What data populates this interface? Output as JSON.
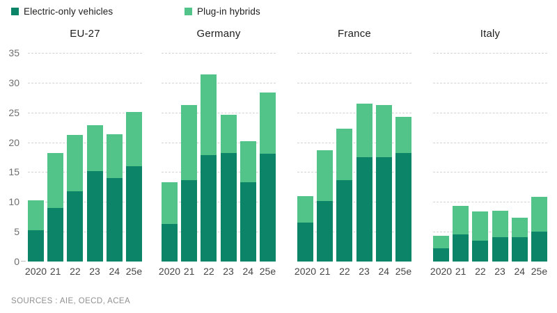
{
  "legend": [
    {
      "label": "Electric-only vehicles",
      "color": "#0C8468"
    },
    {
      "label": "Plug-in hybrids",
      "color": "#52C489"
    }
  ],
  "source_note": "SOURCES : AIE, OECD, ACEA",
  "chart_data": {
    "type": "bar",
    "stacked": true,
    "grid": "horizontal-dashed",
    "legend_position": "top-left",
    "categories": [
      "2020",
      "21",
      "22",
      "23",
      "24",
      "25e"
    ],
    "ylim": [
      0,
      35
    ],
    "yticks": [
      0,
      5,
      10,
      15,
      20,
      25,
      30,
      35
    ],
    "colors": {
      "electric": "#0C8468",
      "hybrid": "#52C489"
    },
    "panels": [
      {
        "title": "EU-27",
        "series": [
          {
            "name": "Electric-only vehicles",
            "values": [
              5.2,
              9.0,
              11.8,
              15.2,
              14.0,
              16.0
            ]
          },
          {
            "name": "Plug-in hybrids",
            "values": [
              5.1,
              9.2,
              9.5,
              7.7,
              7.3,
              9.1
            ]
          }
        ]
      },
      {
        "title": "Germany",
        "series": [
          {
            "name": "Electric-only vehicles",
            "values": [
              6.3,
              13.6,
              17.8,
              18.2,
              13.3,
              18.1
            ]
          },
          {
            "name": "Plug-in hybrids",
            "values": [
              7.0,
              12.7,
              13.6,
              6.4,
              6.9,
              10.3
            ]
          }
        ]
      },
      {
        "title": "France",
        "series": [
          {
            "name": "Electric-only vehicles",
            "values": [
              6.5,
              10.1,
              13.6,
              17.5,
              17.5,
              18.2
            ]
          },
          {
            "name": "Plug-in hybrids",
            "values": [
              4.5,
              8.6,
              8.7,
              9.0,
              8.7,
              6.1
            ]
          }
        ]
      },
      {
        "title": "Italy",
        "series": [
          {
            "name": "Electric-only vehicles",
            "values": [
              2.2,
              4.5,
              3.5,
              4.1,
              4.1,
              5.0
            ]
          },
          {
            "name": "Plug-in hybrids",
            "values": [
              2.1,
              4.8,
              4.9,
              4.4,
              3.3,
              5.9
            ]
          }
        ]
      }
    ]
  }
}
